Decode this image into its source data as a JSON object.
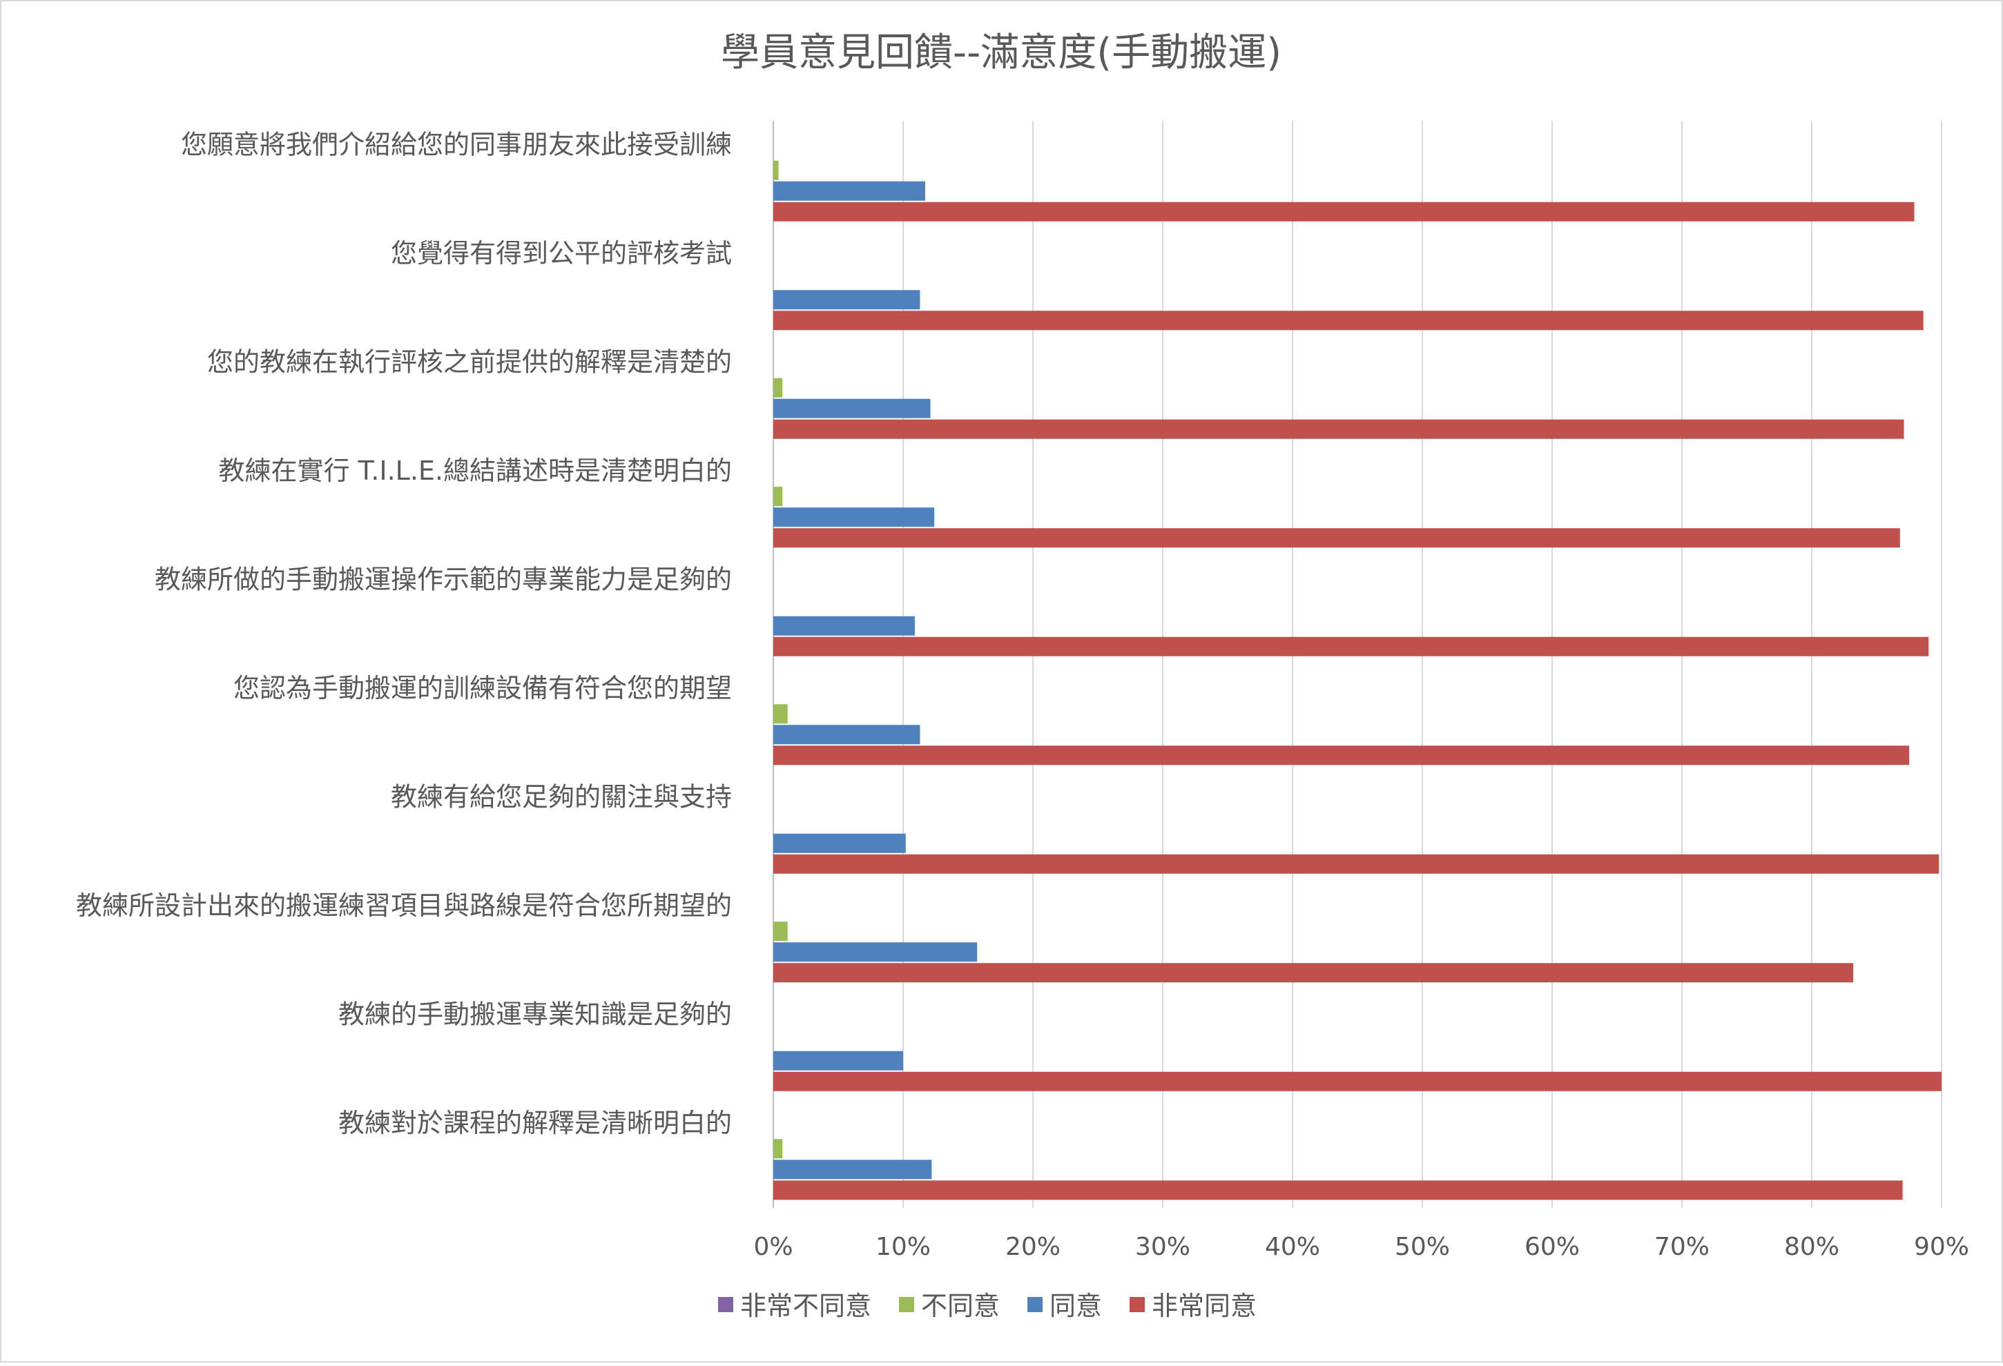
{
  "chart_data": {
    "type": "bar",
    "orientation": "horizontal",
    "title": "學員意見回饋--滿意度(手動搬運)",
    "xlabel": "",
    "ylabel": "",
    "xlim": [
      0,
      0.9
    ],
    "x_ticks": [
      "0%",
      "10%",
      "20%",
      "30%",
      "40%",
      "50%",
      "60%",
      "70%",
      "80%",
      "90%"
    ],
    "grid": "vertical",
    "legend_position": "bottom",
    "categories": [
      "您願意將我們介紹給您的同事朋友來此接受訓練",
      "您覺得有得到公平的評核考試",
      "您的教練在執行評核之前提供的解釋是清楚的",
      "教練在實行 T.I.L.E.總結講述時是清楚明白的",
      "教練所做的手動搬運操作示範的專業能力是足夠的",
      "您認為手動搬運的訓練設備有符合您的期望",
      "教練有給您足夠的關注與支持",
      "教練所設計出來的搬運練習項目與路線是符合您所期望的",
      "教練的手動搬運專業知識是足夠的",
      "教練對於課程的解釋是清晰明白的"
    ],
    "series": [
      {
        "name": "非常不同意",
        "color": "#8064A2",
        "values": [
          0,
          0,
          0,
          0,
          0,
          0,
          0,
          0,
          0,
          0
        ]
      },
      {
        "name": "不同意",
        "color": "#9BBB59",
        "values": [
          0.004,
          0,
          0.007,
          0.007,
          0,
          0.011,
          0,
          0.011,
          0,
          0.007
        ]
      },
      {
        "name": "同意",
        "color": "#4F81BD",
        "values": [
          0.117,
          0.113,
          0.121,
          0.124,
          0.109,
          0.113,
          0.102,
          0.157,
          0.1,
          0.122
        ]
      },
      {
        "name": "非常同意",
        "color": "#C0504D",
        "values": [
          0.879,
          0.886,
          0.871,
          0.868,
          0.89,
          0.875,
          0.898,
          0.832,
          0.9,
          0.87
        ]
      }
    ]
  }
}
